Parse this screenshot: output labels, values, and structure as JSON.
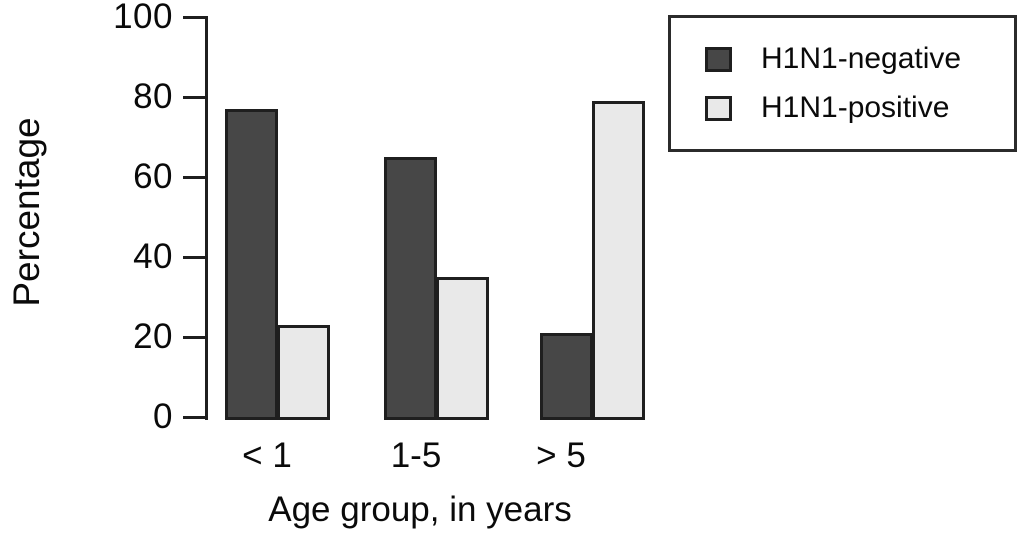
{
  "chart_data": {
    "type": "bar",
    "title": "",
    "xlabel": "Age group, in years",
    "ylabel": "Percentage",
    "categories": [
      "< 1",
      "1-5",
      "> 5"
    ],
    "series": [
      {
        "name": "H1N1-negative",
        "color": "#474747",
        "values": [
          77,
          65,
          21
        ]
      },
      {
        "name": "H1N1-positive",
        "color": "#e9e9e9",
        "values": [
          23,
          35,
          79
        ]
      }
    ],
    "ylim": [
      0,
      100
    ],
    "yticks": [
      0,
      20,
      40,
      60,
      80,
      100
    ],
    "ytick_labels": [
      "0",
      "20",
      "40",
      "60",
      "80",
      "100"
    ],
    "grid": false,
    "legend_position": "top-right",
    "colors": {
      "background": "#ffffff",
      "axis": "#1f1f1f",
      "bar_border": "#1f1f1f",
      "text": "#0a0a0a",
      "negative_fill": "#474747",
      "positive_fill": "#e9e9e9"
    }
  }
}
